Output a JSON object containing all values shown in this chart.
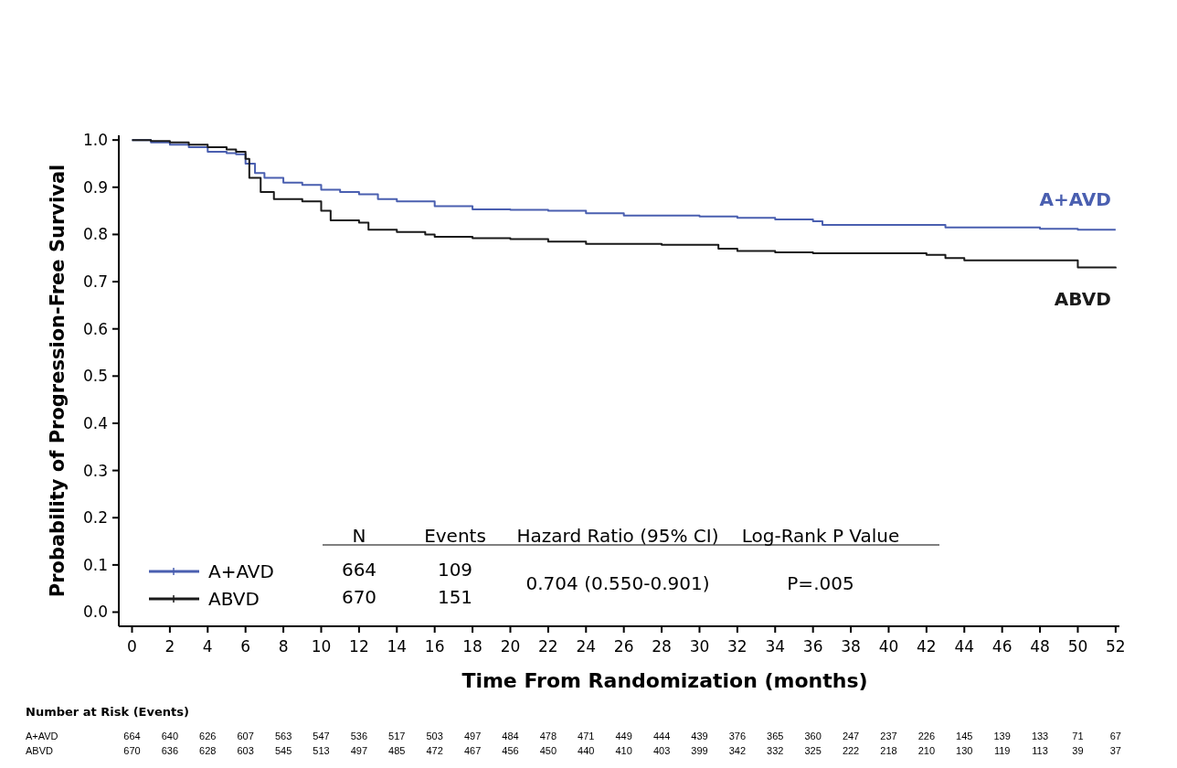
{
  "chart_data": {
    "type": "step",
    "xlabel": "Time From Randomization (months)",
    "ylabel": "Probability of Progression-Free Survival",
    "xlim": [
      -0.7,
      52.2
    ],
    "ylim": [
      -0.03,
      1.01
    ],
    "xticks": [
      0,
      2,
      4,
      6,
      8,
      10,
      12,
      14,
      16,
      18,
      20,
      22,
      24,
      26,
      28,
      30,
      32,
      34,
      36,
      38,
      40,
      42,
      44,
      46,
      48,
      50,
      52
    ],
    "yticks": [
      {
        "value": 0,
        "label": "0.0"
      },
      {
        "value": 0.1,
        "label": "0.1"
      },
      {
        "value": 0.2,
        "label": "0.2"
      },
      {
        "value": 0.3,
        "label": "0.3"
      },
      {
        "value": 0.4,
        "label": "0.4"
      },
      {
        "value": 0.5,
        "label": "0.5"
      },
      {
        "value": 0.6,
        "label": "0.6"
      },
      {
        "value": 0.7,
        "label": "0.7"
      },
      {
        "value": 0.8,
        "label": "0.8"
      },
      {
        "value": 0.9,
        "label": "0.9"
      },
      {
        "value": 1,
        "label": "1.0"
      }
    ],
    "grid": false,
    "legend": "bottom left",
    "series": [
      {
        "name": "A+AVD",
        "color": "#4a5fb0",
        "x": [
          0,
          1,
          2,
          3,
          4,
          5,
          5.5,
          6,
          6.5,
          7,
          8,
          9,
          10,
          11,
          12,
          13,
          14,
          16,
          18,
          20,
          22,
          24,
          26,
          28,
          30,
          32,
          34,
          36,
          36.5,
          38,
          40,
          43,
          46,
          48,
          50,
          52
        ],
        "values": [
          1,
          0.995,
          0.99,
          0.985,
          0.975,
          0.972,
          0.97,
          0.95,
          0.93,
          0.92,
          0.91,
          0.905,
          0.895,
          0.89,
          0.885,
          0.875,
          0.87,
          0.86,
          0.853,
          0.852,
          0.85,
          0.845,
          0.84,
          0.84,
          0.838,
          0.835,
          0.832,
          0.828,
          0.82,
          0.82,
          0.82,
          0.815,
          0.815,
          0.812,
          0.81,
          0.81
        ]
      },
      {
        "name": "ABVD",
        "color": "#1a1a1a",
        "x": [
          0,
          1,
          2,
          3,
          4,
          5,
          5.5,
          6,
          6.2,
          6.8,
          7.5,
          9,
          10,
          10.5,
          12,
          12.5,
          14,
          15.5,
          16,
          18,
          20,
          22,
          24,
          26,
          28,
          30,
          31,
          32,
          34,
          36,
          40,
          42,
          43,
          44,
          46,
          48,
          49.5,
          50,
          52
        ],
        "values": [
          1,
          0.998,
          0.995,
          0.99,
          0.985,
          0.98,
          0.975,
          0.96,
          0.92,
          0.89,
          0.875,
          0.87,
          0.85,
          0.83,
          0.825,
          0.81,
          0.805,
          0.8,
          0.795,
          0.792,
          0.79,
          0.785,
          0.78,
          0.78,
          0.778,
          0.778,
          0.77,
          0.765,
          0.762,
          0.76,
          0.76,
          0.757,
          0.75,
          0.745,
          0.745,
          0.745,
          0.745,
          0.73,
          0.728
        ]
      }
    ],
    "annotations": [
      "Number at Risk (Events)",
      "A+AVD 664 640 626 607 563 547 536 517 503 497 484 478 471 449 444 439 376 365 360 247 237 226 145 139 133 71 67",
      "ABVD 670 636 628 603 545 513 497 485 472 467 456 450 440 410 403 399 342 332 325 222 218 210 130 119 113 39 37",
      "N",
      "Events",
      "Hazard Ratio (95% CI)",
      "Log-Rank P Value",
      "664",
      "109",
      "670",
      "151",
      "0.704 (0.550-0.901)",
      "P=.005"
    ]
  }
}
